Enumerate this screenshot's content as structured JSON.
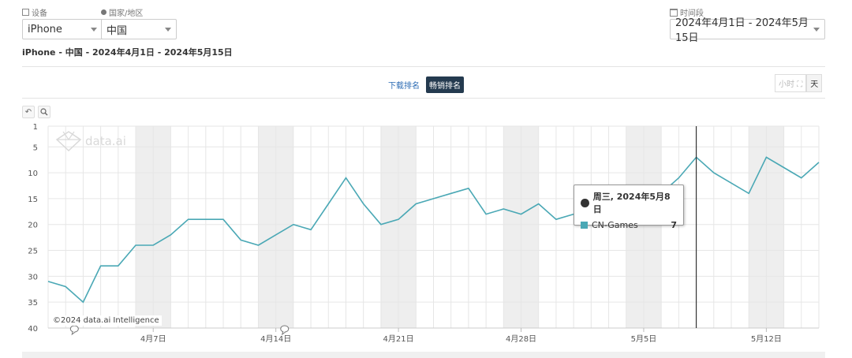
{
  "filters": {
    "device_label": "设备",
    "device_value": "iPhone",
    "country_label": "国家/地区",
    "country_value": "中国",
    "date_label": "时间段",
    "date_value": "2024年4月1日 - 2024年5月15日"
  },
  "subtitle": "iPhone - 中国 - 2024年4月1日 - 2024年5月15日",
  "tabs": {
    "download": "下载排名",
    "grossing": "畅销排名"
  },
  "granularity": {
    "hour": "小时",
    "day": "天"
  },
  "watermark": "data.ai",
  "copyright": "©2024 data.ai Intelligence",
  "tooltip": {
    "title": "周三, 2024年5月8日",
    "series": "CN-Games",
    "value": "7"
  },
  "colors": {
    "line": "#4aa8b5",
    "weekend": "#eeeeee",
    "tab_active": "#243a4f"
  },
  "chart_data": {
    "type": "line",
    "title": "",
    "xlabel": "",
    "ylabel": "",
    "y_reversed": true,
    "ylim": [
      1,
      40
    ],
    "yticks": [
      1,
      5,
      10,
      15,
      20,
      25,
      30,
      35,
      40
    ],
    "x_tick_labels": [
      "4月7日",
      "4月14日",
      "4月21日",
      "4月28日",
      "5月5日",
      "5月12日"
    ],
    "x_tick_dates": [
      "2024-04-07",
      "2024-04-14",
      "2024-04-21",
      "2024-04-28",
      "2024-05-05",
      "2024-05-12"
    ],
    "x_range": [
      "2024-04-01",
      "2024-05-15"
    ],
    "weekend_shading": true,
    "grid": true,
    "crosshair_date": "2024-05-08",
    "series": [
      {
        "name": "CN-Games",
        "x": [
          "2024-04-01",
          "2024-04-02",
          "2024-04-03",
          "2024-04-04",
          "2024-04-05",
          "2024-04-06",
          "2024-04-07",
          "2024-04-08",
          "2024-04-09",
          "2024-04-10",
          "2024-04-11",
          "2024-04-12",
          "2024-04-13",
          "2024-04-14",
          "2024-04-15",
          "2024-04-16",
          "2024-04-17",
          "2024-04-18",
          "2024-04-19",
          "2024-04-20",
          "2024-04-21",
          "2024-04-22",
          "2024-04-23",
          "2024-04-24",
          "2024-04-25",
          "2024-04-26",
          "2024-04-27",
          "2024-04-28",
          "2024-04-29",
          "2024-04-30",
          "2024-05-01",
          "2024-05-02",
          "2024-05-03",
          "2024-05-04",
          "2024-05-05",
          "2024-05-06",
          "2024-05-07",
          "2024-05-08",
          "2024-05-09",
          "2024-05-10",
          "2024-05-11",
          "2024-05-12",
          "2024-05-13",
          "2024-05-14",
          "2024-05-15"
        ],
        "values": [
          31,
          32,
          35,
          28,
          28,
          24,
          24,
          22,
          19,
          19,
          19,
          23,
          24,
          22,
          20,
          21,
          16,
          11,
          16,
          20,
          19,
          16,
          15,
          14,
          13,
          18,
          17,
          18,
          16,
          19,
          18,
          17,
          17,
          14,
          14,
          14,
          11,
          7,
          10,
          12,
          14,
          7,
          9,
          11,
          8
        ]
      }
    ]
  }
}
